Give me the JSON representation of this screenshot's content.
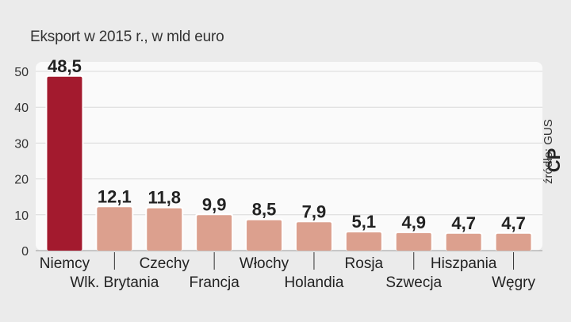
{
  "title": "Eksport w 2015 r., w mld euro",
  "source": "źródło: GUS",
  "logo": "CP",
  "chart_data": {
    "type": "bar",
    "title": "Eksport w 2015 r., w mld euro",
    "xlabel": "",
    "ylabel": "",
    "categories": [
      "Niemcy",
      "Wlk. Brytania",
      "Czechy",
      "Francja",
      "Włochy",
      "Holandia",
      "Rosja",
      "Szwecja",
      "Hiszpania",
      "Węgry"
    ],
    "values": [
      48.5,
      12.1,
      11.8,
      9.9,
      8.5,
      7.9,
      5.1,
      4.9,
      4.7,
      4.7
    ],
    "value_labels": [
      "48,5",
      "12,1",
      "11,8",
      "9,9",
      "8,5",
      "7,9",
      "5,1",
      "4,9",
      "4,7",
      "4,7"
    ],
    "yticks": [
      "0",
      "10",
      "20",
      "30",
      "40",
      "50"
    ],
    "ylim": [
      0,
      50
    ],
    "grid": true,
    "highlight_color": "#a31a2e",
    "bar_color": "#dca08e",
    "panel_color": "#fafafa"
  }
}
